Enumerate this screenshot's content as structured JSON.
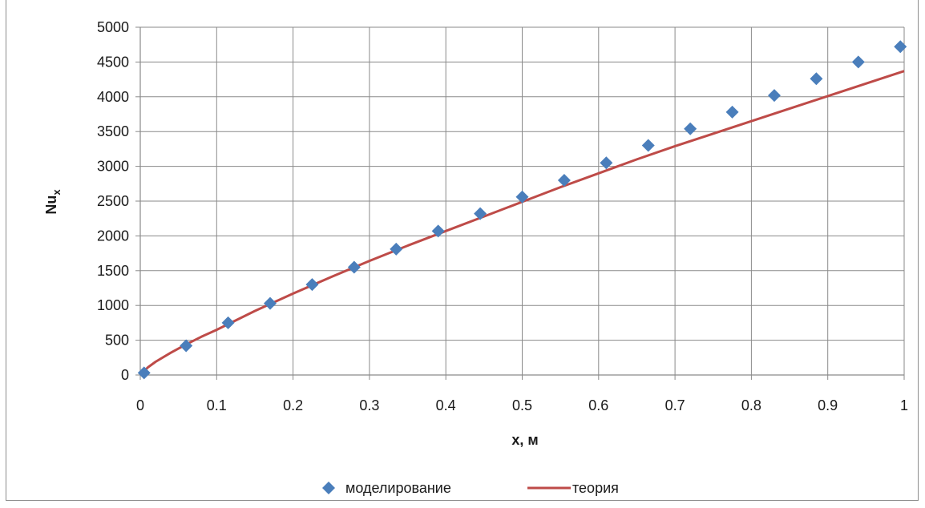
{
  "chart_data": {
    "type": "scatter",
    "title": "",
    "xlabel": "x, м",
    "ylabel_main": "Nu",
    "ylabel_sub": "x",
    "xlim": [
      0,
      1
    ],
    "ylim": [
      0,
      5000
    ],
    "xticks": [
      "0",
      "0.1",
      "0.2",
      "0.3",
      "0.4",
      "0.5",
      "0.6",
      "0.7",
      "0.8",
      "0.9",
      "1"
    ],
    "yticks": [
      "0",
      "500",
      "1000",
      "1500",
      "2000",
      "2500",
      "3000",
      "3500",
      "4000",
      "4500",
      "5000"
    ],
    "grid": true,
    "legend_position": "bottom",
    "series": [
      {
        "name": "моделирование",
        "type": "scatter",
        "marker": "diamond",
        "color": "#4a7ebb",
        "x": [
          0.005,
          0.06,
          0.115,
          0.17,
          0.225,
          0.28,
          0.335,
          0.39,
          0.445,
          0.5,
          0.555,
          0.61,
          0.665,
          0.72,
          0.775,
          0.83,
          0.885,
          0.94,
          0.995
        ],
        "y": [
          30,
          420,
          750,
          1030,
          1300,
          1550,
          1810,
          2070,
          2320,
          2560,
          2800,
          3050,
          3300,
          3540,
          3780,
          4020,
          4260,
          4500,
          4720
        ]
      },
      {
        "name": "теория",
        "type": "line",
        "color": "#be4b48",
        "x": [
          0,
          0.01,
          0.02,
          0.04,
          0.06,
          0.08,
          0.1,
          0.15,
          0.2,
          0.25,
          0.3,
          0.35,
          0.4,
          0.45,
          0.5,
          0.55,
          0.6,
          0.65,
          0.7,
          0.75,
          0.8,
          0.85,
          0.9,
          0.95,
          1.0
        ],
        "y": [
          0,
          110,
          190,
          320,
          440,
          550,
          650,
          920,
          1170,
          1410,
          1640,
          1860,
          2070,
          2280,
          2490,
          2700,
          2900,
          3100,
          3290,
          3470,
          3650,
          3830,
          4010,
          4190,
          4370
        ]
      }
    ]
  }
}
